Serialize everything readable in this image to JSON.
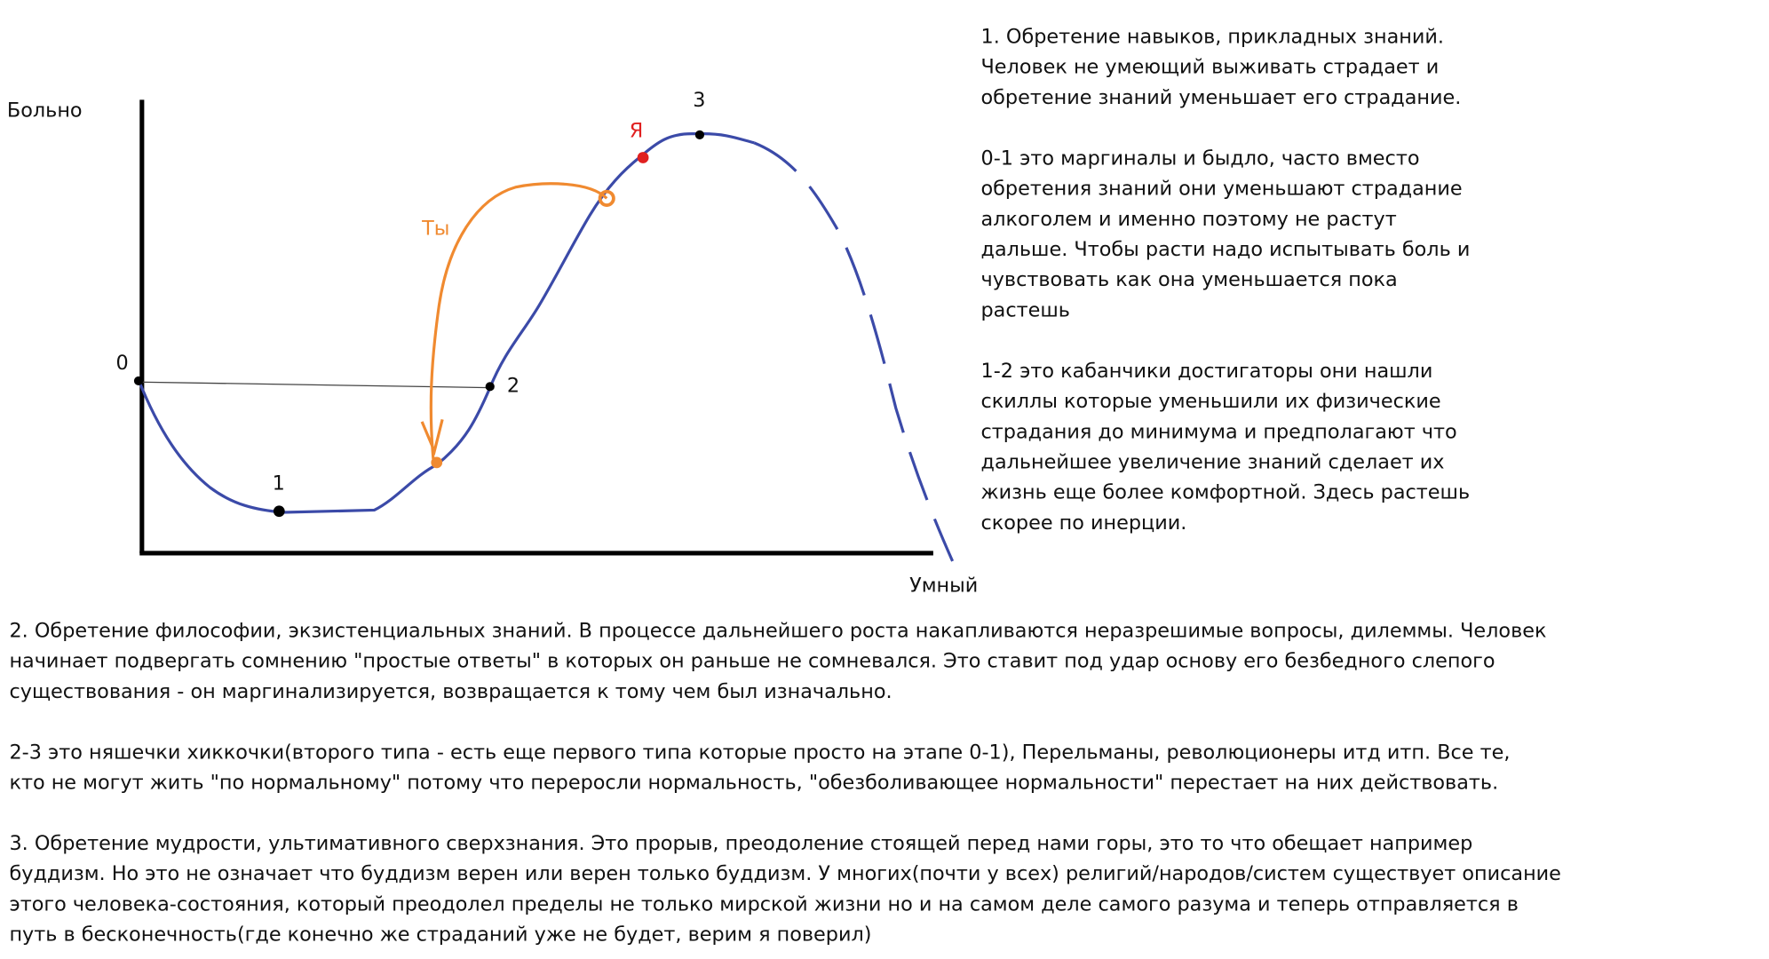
{
  "axis_labels": {
    "y": "Больно",
    "x": "Умный"
  },
  "points": [
    "0",
    "1",
    "2",
    "3"
  ],
  "markers": {
    "me": "Я",
    "you": "Ты"
  },
  "right_text": [
    [
      "1. Обретение навыков, прикладных знаний.",
      "Человек не умеющий выживать страдает и",
      "обретение знаний уменьшает его страдание."
    ],
    [
      "0-1 это маргиналы и быдло, часто вместо",
      "обретения знаний они уменьшают страдание",
      "алкоголем и именно поэтому не растут",
      "дальше. Чтобы расти надо испытывать боль и",
      "чувствовать как она уменьшается пока",
      "растешь"
    ],
    [
      "1-2 это кабанчики достигаторы они нашли",
      "скиллы которые уменьшили их физические",
      "страдания до минимума и предполагают что",
      "дальнейшее увеличение знаний сделает их",
      "жизнь еще более комфортной. Здесь растешь",
      "скорее по инерции."
    ]
  ],
  "bottom_text": [
    [
      "2. Обретение философии, экзистенциальных знаний. В процессе дальнейшего роста накапливаются неразрешимые вопросы, дилеммы. Человек",
      "начинает подвергать сомнению \"простые ответы\" в которых он раньше не сомневался. Это ставит под удар основу его безбедного слепого",
      "существования - он маргинализируется, возвращается к тому чем был изначально."
    ],
    [
      "2-3 это няшечки хиккочки(второго типа - есть еще первого типа которые просто на этапе 0-1), Перельманы, революционеры итд итп. Все те,",
      "кто не могут жить \"по нормальному\" потому что переросли нормальность, \"обезболивающее нормальности\" перестает на них действовать."
    ],
    [
      "3. Обретение мудрости, ультимативного сверхзнания. Это прорыв, преодоление стоящей перед нами горы, это то что обещает например",
      "буддизм. Но это не означает что буддизм верен или верен только буддизм. У многих(почти у всех) религий/народов/систем существует описание",
      "этого человека-состояния, который преодолел пределы не только мирской жизни но и на самом деле самого разума и теперь отправляется в",
      "путь в бесконечность(где конечно же страданий уже не будет, верим я поверил)"
    ]
  ]
}
